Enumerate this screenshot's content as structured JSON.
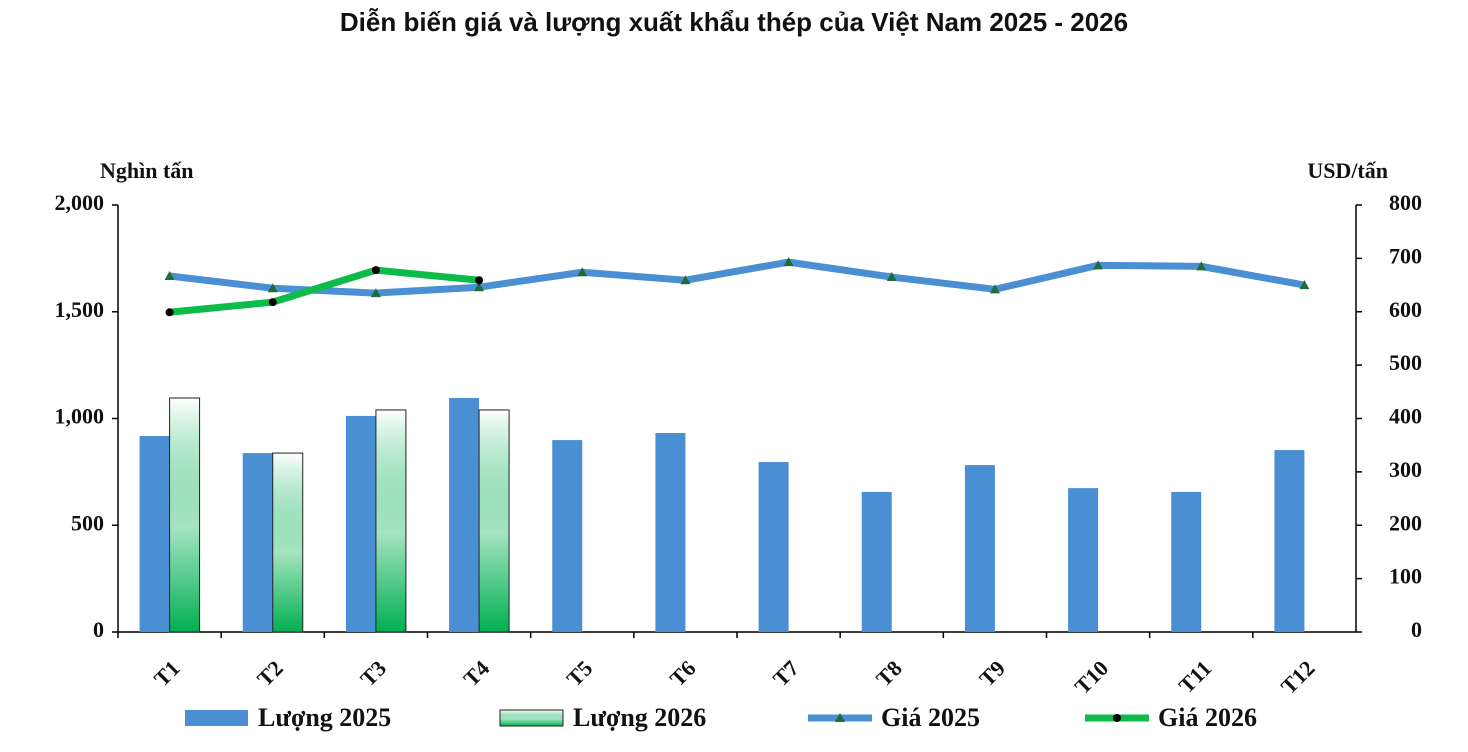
{
  "chart_data": {
    "type": "bar",
    "title": "Diễn biến giá và lượng xuất khẩu thép của Việt Nam 2025 - 2026",
    "y_label": "Nghìn tấn",
    "y2_label": "USD/tấn",
    "categories": [
      "T1",
      "T2",
      "T3",
      "T4",
      "T5",
      "T6",
      "T7",
      "T8",
      "T9",
      "T10",
      "T11",
      "T12"
    ],
    "ylim": [
      0,
      2000
    ],
    "yticks": [
      0,
      500,
      {
        "value": 1000,
        "label": "1,000"
      },
      {
        "value": 1500,
        "label": "1,500"
      },
      {
        "value": 2000,
        "label": "2,000"
      }
    ],
    "y2lim": [
      0,
      800
    ],
    "y2ticks": [
      0,
      100,
      200,
      300,
      400,
      500,
      600,
      700,
      800
    ],
    "legend": "bottom",
    "series": [
      {
        "name": "Lượng 2025",
        "type": "bar",
        "color": "#4a8fd4",
        "values": [
          918,
          838,
          1012,
          1096,
          899,
          932,
          796,
          656,
          782,
          674,
          656,
          852
        ]
      },
      {
        "name": "Lượng 2026",
        "type": "bar",
        "color": "#00b050",
        "gradient": true,
        "values": [
          1096,
          838,
          1040,
          1040,
          null,
          null,
          null,
          null,
          null,
          null,
          null,
          null
        ]
      },
      {
        "name": "Giá 2025",
        "type": "line",
        "axis": "y2",
        "color": "#4a8fd4",
        "marker": "triangle",
        "marker_color": "#1f6b3a",
        "values": [
          667,
          644,
          635,
          646,
          674,
          659,
          693,
          665,
          642,
          687,
          685,
          650
        ]
      },
      {
        "name": "Giá 2026",
        "type": "line",
        "axis": "y2",
        "color": "#0dbb4a",
        "marker": "circle",
        "marker_color": "#000000",
        "values": [
          599,
          618,
          678,
          659,
          null,
          null,
          null,
          null,
          null,
          null,
          null,
          null
        ]
      }
    ]
  }
}
